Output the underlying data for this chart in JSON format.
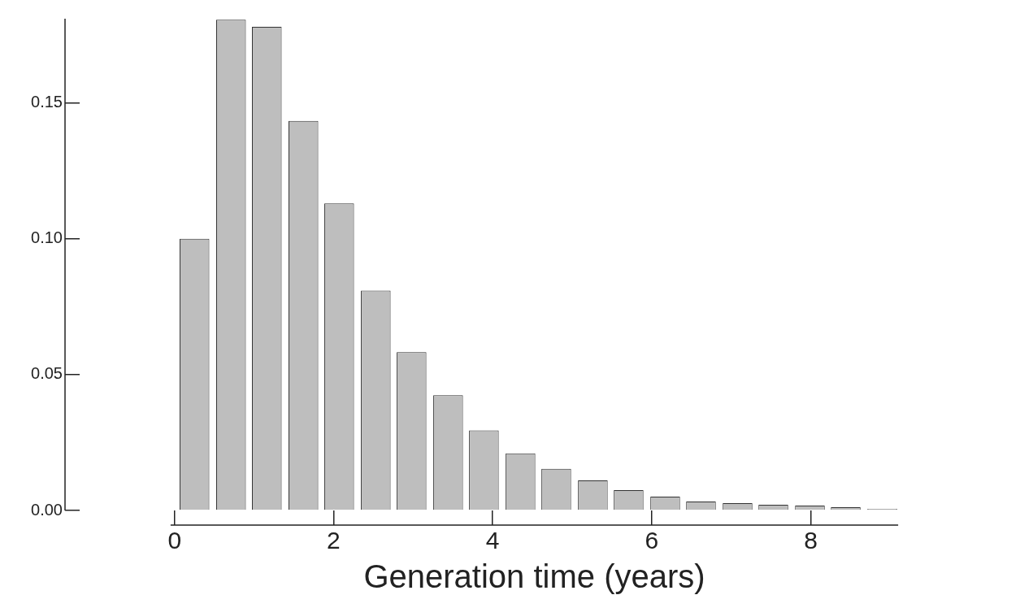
{
  "chart_data": {
    "type": "bar",
    "xlabel": "Generation time (years)",
    "x": [
      0.25,
      0.71,
      1.16,
      1.62,
      2.07,
      2.53,
      2.98,
      3.44,
      3.89,
      4.35,
      4.8,
      5.26,
      5.71,
      6.17,
      6.62,
      7.08,
      7.53,
      7.99,
      8.44,
      8.9
    ],
    "values": [
      0.1,
      0.1806,
      0.178,
      0.1434,
      0.113,
      0.0809,
      0.0583,
      0.0424,
      0.0295,
      0.021,
      0.0153,
      0.0111,
      0.0075,
      0.0051,
      0.0033,
      0.0027,
      0.0021,
      0.0018,
      0.0012,
      0.0006
    ],
    "color": "#bebebe",
    "xlim": [
      -0.05,
      9.1
    ],
    "xticks": [
      0,
      2,
      4,
      6,
      8
    ],
    "ylim": [
      0,
      0.181
    ],
    "yticks": [
      {
        "value": 0,
        "label": "0.00"
      },
      {
        "value": 0.05,
        "label": "0.05"
      },
      {
        "value": 0.1,
        "label": "0.10"
      },
      {
        "value": 0.15,
        "label": "0.15"
      }
    ],
    "grid": false,
    "legend": false
  }
}
